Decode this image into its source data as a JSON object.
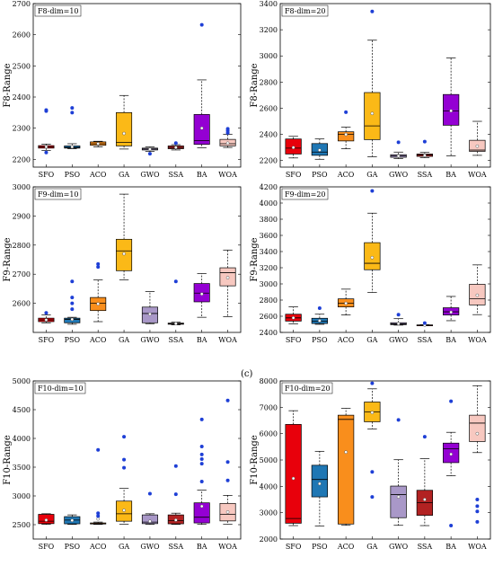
{
  "categories": [
    "SFO",
    "PSO",
    "ACO",
    "GA",
    "GWO",
    "SSA",
    "BA",
    "WOA"
  ],
  "colors": [
    "#e8000b",
    "#1f77b4",
    "#f98e1c",
    "#fbb917",
    "#a998c8",
    "#b22222",
    "#9400d3",
    "#f7c8c0"
  ],
  "outlier_color": "#1e3fd6",
  "panel_label": "(c)",
  "chart_data": [
    {
      "type": "box",
      "title": "F8-dim=10",
      "ylabel": "F8-Range",
      "ylim": [
        2175,
        2700
      ],
      "yticks": [
        "2200",
        "2300",
        "2400",
        "2500",
        "2600",
        "2700"
      ],
      "ytick_vals": [
        2200,
        2300,
        2400,
        2500,
        2600,
        2700
      ],
      "boxes": [
        {
          "wlo": 2228,
          "q1": 2236,
          "med": 2240,
          "q3": 2244,
          "whi": 2249,
          "mean": 2240,
          "outliers": [
            2222,
            2355,
            2358
          ]
        },
        {
          "wlo": 2234,
          "q1": 2236,
          "med": 2238,
          "q3": 2243,
          "whi": 2250,
          "mean": 2240,
          "outliers": [
            2350,
            2365
          ]
        },
        {
          "wlo": 2240,
          "q1": 2245,
          "med": 2250,
          "q3": 2256,
          "whi": 2258,
          "mean": 2250,
          "outliers": []
        },
        {
          "wlo": 2233,
          "q1": 2243,
          "med": 2254,
          "q3": 2350,
          "whi": 2405,
          "mean": 2283,
          "outliers": []
        },
        {
          "wlo": 2225,
          "q1": 2230,
          "med": 2233,
          "q3": 2236,
          "whi": 2240,
          "mean": 2232,
          "outliers": [
            2218
          ]
        },
        {
          "wlo": 2230,
          "q1": 2234,
          "med": 2238,
          "q3": 2243,
          "whi": 2247,
          "mean": 2238,
          "outliers": [
            2252
          ]
        },
        {
          "wlo": 2237,
          "q1": 2248,
          "med": 2260,
          "q3": 2344,
          "whi": 2455,
          "mean": 2300,
          "outliers": [
            2632
          ]
        },
        {
          "wlo": 2238,
          "q1": 2243,
          "med": 2250,
          "q3": 2264,
          "whi": 2280,
          "mean": 2252,
          "outliers": [
            2285,
            2292,
            2298
          ]
        }
      ]
    },
    {
      "type": "box",
      "title": "F8-dim=20",
      "ylabel": "F8-Range",
      "ylim": [
        2150,
        3400
      ],
      "yticks": [
        "2200",
        "2400",
        "2600",
        "2800",
        "3000",
        "3200",
        "3400"
      ],
      "ytick_vals": [
        2200,
        2400,
        2600,
        2800,
        3000,
        3200,
        3400
      ],
      "boxes": [
        {
          "wlo": 2220,
          "q1": 2250,
          "med": 2295,
          "q3": 2365,
          "whi": 2385,
          "mean": 2300,
          "outliers": []
        },
        {
          "wlo": 2210,
          "q1": 2240,
          "med": 2265,
          "q3": 2330,
          "whi": 2365,
          "mean": 2280,
          "outliers": []
        },
        {
          "wlo": 2290,
          "q1": 2350,
          "med": 2400,
          "q3": 2420,
          "whi": 2455,
          "mean": 2400,
          "outliers": [
            2570
          ]
        },
        {
          "wlo": 2230,
          "q1": 2360,
          "med": 2465,
          "q3": 2720,
          "whi": 3120,
          "mean": 2560,
          "outliers": [
            3340
          ]
        },
        {
          "wlo": 2215,
          "q1": 2225,
          "med": 2235,
          "q3": 2245,
          "whi": 2265,
          "mean": 2235,
          "outliers": [
            2340
          ]
        },
        {
          "wlo": 2222,
          "q1": 2232,
          "med": 2242,
          "q3": 2250,
          "whi": 2262,
          "mean": 2240,
          "outliers": [
            2345
          ]
        },
        {
          "wlo": 2235,
          "q1": 2470,
          "med": 2580,
          "q3": 2705,
          "whi": 2985,
          "mean": 2580,
          "outliers": []
        },
        {
          "wlo": 2240,
          "q1": 2270,
          "med": 2280,
          "q3": 2355,
          "whi": 2500,
          "mean": 2310,
          "outliers": []
        }
      ]
    },
    {
      "type": "box",
      "title": "F9-dim=10",
      "ylabel": "F9-Range",
      "ylim": [
        2500,
        3000
      ],
      "yticks": [
        "2600",
        "2700",
        "2800",
        "2900",
        "3000"
      ],
      "ytick_vals": [
        2600,
        2700,
        2800,
        2900,
        3000
      ],
      "boxes": [
        {
          "wlo": 2533,
          "q1": 2537,
          "med": 2543,
          "q3": 2549,
          "whi": 2560,
          "mean": 2543,
          "outliers": [
            2567
          ]
        },
        {
          "wlo": 2528,
          "q1": 2533,
          "med": 2545,
          "q3": 2549,
          "whi": 2552,
          "mean": 2545,
          "outliers": [
            2580,
            2600,
            2620,
            2675
          ]
        },
        {
          "wlo": 2537,
          "q1": 2575,
          "med": 2600,
          "q3": 2620,
          "whi": 2680,
          "mean": 2598,
          "outliers": [
            2725,
            2735
          ]
        },
        {
          "wlo": 2680,
          "q1": 2712,
          "med": 2780,
          "q3": 2820,
          "whi": 2975,
          "mean": 2770,
          "outliers": []
        },
        {
          "wlo": 2530,
          "q1": 2533,
          "med": 2565,
          "q3": 2587,
          "whi": 2640,
          "mean": 2563,
          "outliers": []
        },
        {
          "wlo": 2526,
          "q1": 2528,
          "med": 2530,
          "q3": 2532,
          "whi": 2535,
          "mean": 2530,
          "outliers": [
            2675
          ]
        },
        {
          "wlo": 2552,
          "q1": 2605,
          "med": 2635,
          "q3": 2668,
          "whi": 2702,
          "mean": 2632,
          "outliers": []
        },
        {
          "wlo": 2554,
          "q1": 2660,
          "med": 2705,
          "q3": 2722,
          "whi": 2783,
          "mean": 2688,
          "outliers": []
        }
      ]
    },
    {
      "type": "box",
      "title": "F9-dim=20",
      "ylabel": "F9-Range",
      "ylim": [
        2400,
        4200
      ],
      "yticks": [
        "2400",
        "2600",
        "2800",
        "3000",
        "3200",
        "3400",
        "3600",
        "3800",
        "4000",
        "4200"
      ],
      "ytick_vals": [
        2400,
        2600,
        2800,
        3000,
        3200,
        3400,
        3600,
        3800,
        4000,
        4200
      ],
      "boxes": [
        {
          "wlo": 2505,
          "q1": 2540,
          "med": 2580,
          "q3": 2625,
          "whi": 2715,
          "mean": 2580,
          "outliers": []
        },
        {
          "wlo": 2500,
          "q1": 2510,
          "med": 2540,
          "q3": 2575,
          "whi": 2625,
          "mean": 2545,
          "outliers": [
            2700
          ]
        },
        {
          "wlo": 2615,
          "q1": 2715,
          "med": 2760,
          "q3": 2815,
          "whi": 2935,
          "mean": 2760,
          "outliers": []
        },
        {
          "wlo": 2895,
          "q1": 3175,
          "med": 3255,
          "q3": 3510,
          "whi": 3875,
          "mean": 3325,
          "outliers": [
            4150
          ]
        },
        {
          "wlo": 2490,
          "q1": 2495,
          "med": 2505,
          "q3": 2520,
          "whi": 2570,
          "mean": 2508,
          "outliers": [
            2620
          ]
        },
        {
          "wlo": 2485,
          "q1": 2487,
          "med": 2490,
          "q3": 2493,
          "whi": 2495,
          "mean": 2490,
          "outliers": [
            2515
          ]
        },
        {
          "wlo": 2545,
          "q1": 2615,
          "med": 2655,
          "q3": 2705,
          "whi": 2845,
          "mean": 2650,
          "outliers": []
        },
        {
          "wlo": 2620,
          "q1": 2740,
          "med": 2815,
          "q3": 2995,
          "whi": 3235,
          "mean": 2860,
          "outliers": []
        }
      ]
    },
    {
      "type": "box",
      "title": "F10-dim=10",
      "ylabel": "F10-Range",
      "ylim": [
        2250,
        5000
      ],
      "yticks": [
        "2500",
        "3000",
        "3500",
        "4000",
        "4500",
        "5000"
      ],
      "ytick_vals": [
        2500,
        3000,
        3500,
        4000,
        4500,
        5000
      ],
      "boxes": [
        {
          "wlo": 2505,
          "q1": 2518,
          "med": 2560,
          "q3": 2680,
          "whi": 2690,
          "mean": 2580,
          "outliers": []
        },
        {
          "wlo": 2505,
          "q1": 2515,
          "med": 2580,
          "q3": 2640,
          "whi": 2670,
          "mean": 2575,
          "outliers": []
        },
        {
          "wlo": 2505,
          "q1": 2512,
          "med": 2515,
          "q3": 2530,
          "whi": 2545,
          "mean": 2600,
          "outliers": [
            2650,
            2700,
            3800
          ]
        },
        {
          "wlo": 2505,
          "q1": 2560,
          "med": 2690,
          "q3": 2910,
          "whi": 3130,
          "mean": 2750,
          "outliers": [
            3490,
            3630,
            4030
          ]
        },
        {
          "wlo": 2505,
          "q1": 2518,
          "med": 2545,
          "q3": 2670,
          "whi": 2690,
          "mean": 2560,
          "outliers": [
            3040
          ]
        },
        {
          "wlo": 2505,
          "q1": 2515,
          "med": 2570,
          "q3": 2670,
          "whi": 2700,
          "mean": 2580,
          "outliers": [
            3030,
            3520
          ]
        },
        {
          "wlo": 2505,
          "q1": 2530,
          "med": 2630,
          "q3": 2880,
          "whi": 3100,
          "mean": 2820,
          "outliers": [
            3250,
            3560,
            3640,
            3720,
            3860,
            4330
          ]
        },
        {
          "wlo": 2505,
          "q1": 2565,
          "med": 2680,
          "q3": 2870,
          "whi": 3010,
          "mean": 2720,
          "outliers": [
            3270,
            3590,
            4660
          ]
        }
      ]
    },
    {
      "type": "box",
      "title": "F10-dim=20",
      "ylabel": "F10-Range",
      "ylim": [
        2000,
        8000
      ],
      "yticks": [
        "2000",
        "3000",
        "4000",
        "5000",
        "6000",
        "7000",
        "8000"
      ],
      "ytick_vals": [
        2000,
        3000,
        4000,
        5000,
        6000,
        7000,
        8000
      ],
      "boxes": [
        {
          "wlo": 2510,
          "q1": 2600,
          "med": 2780,
          "q3": 6350,
          "whi": 6870,
          "mean": 4300,
          "outliers": []
        },
        {
          "wlo": 2500,
          "q1": 3600,
          "med": 4260,
          "q3": 4800,
          "whi": 5330,
          "mean": 4100,
          "outliers": []
        },
        {
          "wlo": 2520,
          "q1": 2570,
          "med": 6540,
          "q3": 6700,
          "whi": 6960,
          "mean": 5300,
          "outliers": []
        },
        {
          "wlo": 6180,
          "q1": 6450,
          "med": 6820,
          "q3": 7200,
          "whi": 7700,
          "mean": 6800,
          "outliers": [
            3600,
            4550,
            7910
          ]
        },
        {
          "wlo": 2520,
          "q1": 2810,
          "med": 3690,
          "q3": 4010,
          "whi": 5010,
          "mean": 3600,
          "outliers": [
            6520
          ]
        },
        {
          "wlo": 2510,
          "q1": 2900,
          "med": 3380,
          "q3": 3850,
          "whi": 5050,
          "mean": 3500,
          "outliers": [
            5880
          ]
        },
        {
          "wlo": 4400,
          "q1": 4900,
          "med": 5430,
          "q3": 5640,
          "whi": 6050,
          "mean": 5220,
          "outliers": [
            2510,
            7230
          ]
        },
        {
          "wlo": 5280,
          "q1": 5700,
          "med": 6400,
          "q3": 6700,
          "whi": 7820,
          "mean": 6000,
          "outliers": [
            2650,
            3050,
            3250,
            3500
          ]
        }
      ]
    }
  ]
}
